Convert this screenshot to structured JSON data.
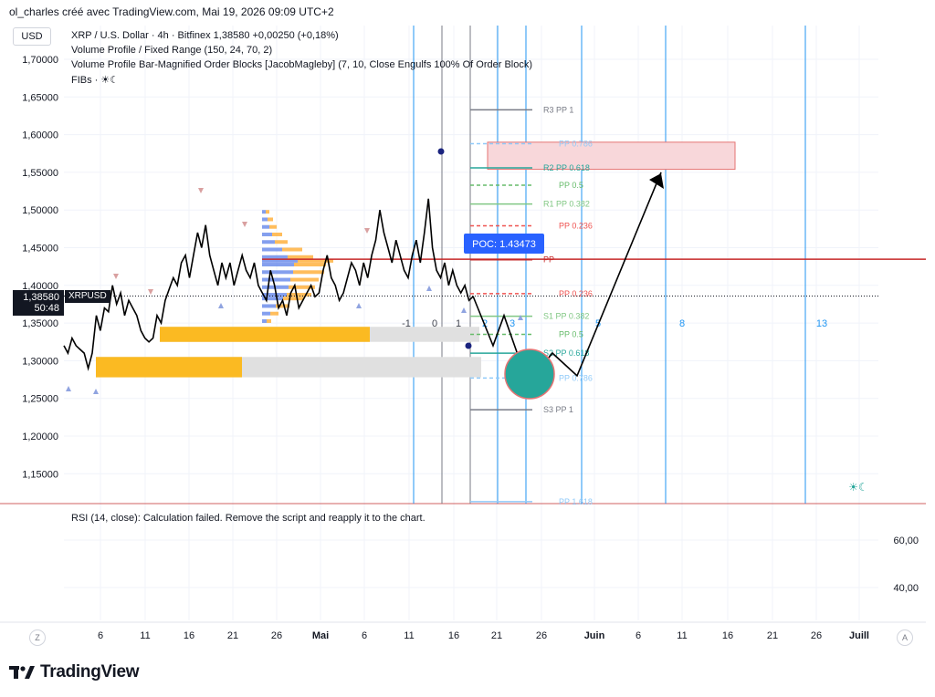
{
  "header": {
    "attribution": "ol_charles créé avec TradingView.com, Mai 19, 2026 09:09 UTC+2"
  },
  "toolbar": {
    "currency": "USD"
  },
  "legend": {
    "line1": "XRP / U.S. Dollar · 4h · Bitfinex  1,38580  +0,00250 (+0,18%)",
    "line2": "Volume Profile / Fixed Range (150, 24, 70, 2)",
    "line3": "Volume Profile Bar-Magnified Order Blocks [JacobMagleby] (7, 10, Close Engulfs 100% Of Order Block)",
    "line4": "FIBs · ☀☾"
  },
  "price_label": {
    "price": "1,38580",
    "countdown": "50:48",
    "symbol": "XRPUSD"
  },
  "poc_label": "POC: 1.43473",
  "rsi_label": "RSI (14, close): Calculation failed. Remove the script and reapply it to the chart.",
  "rsi_axis": [
    "60,00",
    "40,00"
  ],
  "brand": "TradingView",
  "scale_buttons": {
    "left": "Z",
    "right": "A"
  },
  "fib_time_labels": [
    "-1",
    "0",
    "1",
    "2",
    "3",
    "5",
    "8",
    "13"
  ],
  "pivot_labels": [
    "R3 PP 1",
    "PP 0.786",
    "R2 PP 0.618",
    "PP 0.5",
    "R1 PP 0.382",
    "PP 0.236",
    "PP",
    "PP 0.236",
    "S1 PP 0.382",
    "PP 0.5",
    "S2 PP 0.618",
    "PP 0.786",
    "S3 PP 1",
    "PP 1.618"
  ],
  "colors": {
    "price": "#000000",
    "poc_line": "#c62828",
    "poc_box": "#2962ff",
    "fib_time": "#2196f3",
    "circle": "#26a69a",
    "order_block": "#ffa726",
    "zone": "#f8d7da"
  },
  "chart_data": {
    "type": "line",
    "ylim": [
      1.1,
      1.73
    ],
    "y_ticks": [
      "1,70000",
      "1,65000",
      "1,60000",
      "1,55000",
      "1,50000",
      "1,45000",
      "1,40000",
      "1,35000",
      "1,30000",
      "1,25000",
      "1,20000",
      "1,15000"
    ],
    "x_ticks": [
      "6",
      "11",
      "16",
      "21",
      "26",
      "Mai",
      "6",
      "11",
      "16",
      "21",
      "26",
      "Juin",
      "6",
      "11",
      "16",
      "21",
      "26",
      "Juill"
    ],
    "last_price": 1.3858,
    "poc": 1.43473,
    "series": [
      {
        "values": [
          1.32,
          1.31,
          1.33,
          1.32,
          1.315,
          1.31,
          1.29,
          1.31,
          1.36,
          1.34,
          1.37,
          1.365,
          1.4,
          1.375,
          1.39,
          1.36,
          1.38,
          1.37,
          1.36,
          1.34,
          1.33,
          1.325,
          1.33,
          1.36,
          1.35,
          1.38,
          1.395,
          1.41,
          1.4,
          1.43,
          1.44,
          1.41,
          1.44,
          1.47,
          1.45,
          1.48,
          1.44,
          1.42,
          1.4,
          1.43,
          1.41,
          1.43,
          1.4,
          1.42,
          1.44,
          1.42,
          1.41,
          1.43,
          1.4,
          1.39,
          1.38,
          1.42,
          1.4,
          1.37,
          1.38,
          1.36,
          1.39,
          1.4,
          1.37,
          1.38,
          1.39,
          1.4,
          1.385,
          1.39,
          1.42,
          1.44,
          1.41,
          1.4,
          1.38,
          1.39,
          1.41,
          1.43,
          1.42,
          1.4,
          1.43,
          1.41,
          1.44,
          1.46,
          1.5,
          1.47,
          1.45,
          1.43,
          1.46,
          1.44,
          1.42,
          1.41,
          1.44,
          1.46,
          1.43,
          1.47,
          1.515,
          1.45,
          1.42,
          1.41,
          1.43,
          1.4,
          1.42,
          1.4,
          1.39,
          1.4,
          1.38,
          1.385
        ]
      }
    ],
    "projection": [
      [
        1.3858,
        1.39
      ],
      [
        1.32,
        1.38
      ],
      [
        1.36,
        1.35
      ],
      [
        1.27,
        1.32
      ],
      [
        1.31,
        1.3
      ],
      [
        1.28,
        1.29
      ],
      [
        1.55,
        1.33
      ]
    ]
  }
}
